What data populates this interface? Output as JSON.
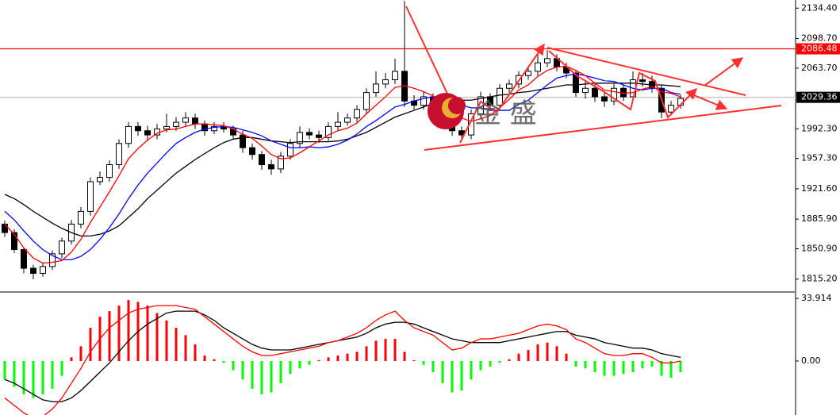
{
  "chart_data": [
    {
      "type": "candlestick",
      "watermark": "金 盛",
      "ylim": [
        1800,
        2144
      ],
      "yticks": [
        {
          "value": 2134.4,
          "label": "2134.40"
        },
        {
          "value": 2098.7,
          "label": "2098.70"
        },
        {
          "value": 2063.7,
          "label": "2063.70"
        },
        {
          "value": 1992.3,
          "label": "1992.30"
        },
        {
          "value": 1957.3,
          "label": "1957.30"
        },
        {
          "value": 1921.6,
          "label": "1921.60"
        },
        {
          "value": 1885.9,
          "label": "1885.90"
        },
        {
          "value": 1850.9,
          "label": "1850.90"
        },
        {
          "value": 1815.2,
          "label": "1815.20"
        }
      ],
      "hlines": [
        {
          "value": 2086.48,
          "label": "2086.48",
          "color": "#ff0000"
        },
        {
          "value": 2029.36,
          "label": "2029.36",
          "color": "#c0c0c0",
          "label_color": "#000000"
        }
      ],
      "up_color": "#ffffff",
      "down_color": "#000000",
      "candles": [
        [
          1880,
          1884,
          1865,
          1870
        ],
        [
          1870,
          1874,
          1846,
          1850
        ],
        [
          1850,
          1852,
          1822,
          1828
        ],
        [
          1828,
          1832,
          1815,
          1822
        ],
        [
          1822,
          1835,
          1818,
          1830
        ],
        [
          1830,
          1849,
          1826,
          1845
        ],
        [
          1845,
          1864,
          1840,
          1860
        ],
        [
          1860,
          1885,
          1856,
          1880
        ],
        [
          1880,
          1900,
          1875,
          1895
        ],
        [
          1895,
          1935,
          1890,
          1930
        ],
        [
          1930,
          1942,
          1926,
          1935
        ],
        [
          1935,
          1955,
          1930,
          1950
        ],
        [
          1950,
          1980,
          1945,
          1975
        ],
        [
          1975,
          2000,
          1970,
          1995
        ],
        [
          1995,
          2000,
          1984,
          1990
        ],
        [
          1990,
          1996,
          1978,
          1985
        ],
        [
          1985,
          1998,
          1980,
          1992
        ],
        [
          1992,
          2010,
          1988,
          1995
        ],
        [
          1995,
          2006,
          1990,
          2000
        ],
        [
          2000,
          2012,
          1995,
          2005
        ],
        [
          2005,
          2010,
          1992,
          1998
        ],
        [
          1998,
          2002,
          1984,
          1990
        ],
        [
          1990,
          2000,
          1986,
          1995
        ],
        [
          1995,
          2000,
          1988,
          1992
        ],
        [
          1992,
          1996,
          1980,
          1985
        ],
        [
          1985,
          1990,
          1964,
          1970
        ],
        [
          1970,
          1975,
          1956,
          1962
        ],
        [
          1962,
          1966,
          1944,
          1950
        ],
        [
          1950,
          1956,
          1938,
          1945
        ],
        [
          1945,
          1965,
          1940,
          1960
        ],
        [
          1960,
          1980,
          1956,
          1975
        ],
        [
          1975,
          1995,
          1970,
          1988
        ],
        [
          1988,
          1993,
          1980,
          1985
        ],
        [
          1985,
          1990,
          1976,
          1982
        ],
        [
          1982,
          2000,
          1978,
          1995
        ],
        [
          1995,
          2012,
          1990,
          2000
        ],
        [
          2000,
          2010,
          1996,
          2005
        ],
        [
          2005,
          2020,
          2000,
          2015
        ],
        [
          2015,
          2040,
          2010,
          2035
        ],
        [
          2035,
          2060,
          2030,
          2045
        ],
        [
          2045,
          2058,
          2040,
          2050
        ],
        [
          2050,
          2075,
          2045,
          2060
        ],
        [
          2060,
          2143,
          2018,
          2025
        ],
        [
          2025,
          2032,
          2014,
          2020
        ],
        [
          2020,
          2036,
          2015,
          2030
        ],
        [
          2030,
          2034,
          2010,
          2015
        ],
        [
          2015,
          2020,
          2000,
          2005
        ],
        [
          2005,
          2010,
          1984,
          1990
        ],
        [
          1990,
          1995,
          1978,
          1985
        ],
        [
          1985,
          2015,
          1980,
          2010
        ],
        [
          2010,
          2036,
          2005,
          2030
        ],
        [
          2030,
          2034,
          2014,
          2020
        ],
        [
          2020,
          2045,
          2015,
          2040
        ],
        [
          2040,
          2050,
          2035,
          2045
        ],
        [
          2045,
          2060,
          2040,
          2055
        ],
        [
          2055,
          2065,
          2050,
          2060
        ],
        [
          2060,
          2082,
          2055,
          2070
        ],
        [
          2070,
          2085,
          2065,
          2075
        ],
        [
          2075,
          2080,
          2060,
          2065
        ],
        [
          2065,
          2070,
          2052,
          2058
        ],
        [
          2058,
          2062,
          2030,
          2035
        ],
        [
          2035,
          2048,
          2028,
          2040
        ],
        [
          2040,
          2045,
          2024,
          2030
        ],
        [
          2030,
          2036,
          2018,
          2025
        ],
        [
          2025,
          2045,
          2020,
          2040
        ],
        [
          2040,
          2044,
          2025,
          2030
        ],
        [
          2030,
          2060,
          2026,
          2050
        ],
        [
          2050,
          2058,
          2042,
          2048
        ],
        [
          2048,
          2055,
          2035,
          2040
        ],
        [
          2040,
          2044,
          2005,
          2012
        ],
        [
          2012,
          2025,
          2008,
          2020
        ],
        [
          2020,
          2032,
          2016,
          2028
        ]
      ],
      "series": [
        {
          "color": "#000000",
          "values": [
            1915,
            1910,
            1903,
            1895,
            1888,
            1881,
            1875,
            1870,
            1866,
            1866,
            1868,
            1872,
            1878,
            1888,
            1898,
            1910,
            1920,
            1930,
            1940,
            1948,
            1956,
            1963,
            1970,
            1976,
            1980,
            1982,
            1982,
            1980,
            1978,
            1977,
            1976,
            1977,
            1977,
            1977,
            1977,
            1978,
            1980,
            1984,
            1988,
            1994,
            2000,
            2006,
            2010,
            2014,
            2018,
            2022,
            2024,
            2025,
            2026,
            2026,
            2028,
            2030,
            2032,
            2033,
            2035,
            2036,
            2038,
            2040,
            2042,
            2044,
            2044,
            2045,
            2046,
            2046,
            2046,
            2046,
            2046,
            2045,
            2044,
            2044,
            2043,
            2042
          ]
        },
        {
          "color": "#0000ff",
          "values": [
            1895,
            1885,
            1872,
            1860,
            1850,
            1843,
            1838,
            1838,
            1842,
            1850,
            1862,
            1876,
            1892,
            1910,
            1926,
            1940,
            1952,
            1964,
            1975,
            1982,
            1988,
            1992,
            1994,
            1995,
            1994,
            1991,
            1988,
            1984,
            1978,
            1974,
            1970,
            1970,
            1971,
            1970,
            1971,
            1974,
            1979,
            1986,
            1995,
            2002,
            2010,
            2018,
            2021,
            2025,
            2028,
            2030,
            2030,
            2026,
            2020,
            2017,
            2017,
            2014,
            2014,
            2014,
            2021,
            2026,
            2035,
            2044,
            2052,
            2055,
            2057,
            2055,
            2052,
            2049,
            2048,
            2044,
            2040,
            2038,
            2040,
            2040,
            2035,
            2033
          ]
        },
        {
          "color": "#ff0000",
          "values": [
            1880,
            1868,
            1852,
            1840,
            1834,
            1835,
            1837,
            1847,
            1862,
            1882,
            1900,
            1918,
            1937,
            1957,
            1969,
            1979,
            1987,
            1991,
            1992,
            1995,
            1998,
            1998,
            1997,
            1996,
            1992,
            1986,
            1981,
            1972,
            1962,
            1957,
            1958,
            1964,
            1971,
            1978,
            1985,
            1990,
            1993,
            1999,
            2010,
            2020,
            2030,
            2041,
            2043,
            2040,
            2036,
            2031,
            2019,
            2012,
            2005,
            2001,
            2004,
            2008,
            2017,
            2027,
            2038,
            2044,
            2054,
            2061,
            2065,
            2066,
            2061,
            2055,
            2046,
            2038,
            2036,
            2034,
            2035,
            2039,
            2042,
            2036,
            2034,
            2030
          ]
        }
      ]
    },
    {
      "type": "macd",
      "ylim": [
        -29.2,
        36.5
      ],
      "yticks": [
        33.914,
        {
          "value": 0,
          "label": "0.00"
        }
      ],
      "pos_color": "#ff0000",
      "neg_color": "#00ff00",
      "histogram": [
        -10,
        -14,
        -18,
        -20,
        -18,
        -15,
        -8,
        2,
        8,
        18,
        24,
        27,
        30,
        33,
        32,
        30,
        26,
        22,
        18,
        14,
        9,
        3,
        1,
        -1,
        -5,
        -10,
        -15,
        -18,
        -17,
        -12,
        -7,
        -4,
        -2,
        0.5,
        2,
        3,
        4,
        5,
        8,
        11,
        12,
        12,
        5,
        0.5,
        -2,
        -6,
        -12,
        -17,
        -16,
        -10,
        -5,
        -3,
        -1,
        1,
        4,
        6,
        9,
        10,
        8,
        4,
        -3,
        -4,
        -6,
        -8,
        -8,
        -7,
        -6,
        -4,
        -3,
        -8,
        -9,
        -6
      ],
      "series": [
        {
          "color": "#000000",
          "values": [
            -10,
            -12,
            -15,
            -18,
            -21,
            -22,
            -22,
            -20,
            -16,
            -11,
            -6,
            -1,
            5,
            11,
            16,
            20,
            23,
            26,
            27,
            27,
            27,
            25,
            22,
            18,
            15,
            12,
            9,
            7,
            6,
            6,
            6,
            7,
            8,
            9,
            10,
            11,
            12,
            13,
            15,
            18,
            20,
            21,
            21,
            20,
            18,
            16,
            14,
            12,
            11,
            10,
            10,
            10,
            10,
            11,
            12,
            13,
            14,
            15,
            16,
            16,
            14,
            13,
            12,
            10,
            9,
            8,
            7,
            7,
            6,
            4,
            3,
            2
          ]
        },
        {
          "color": "#ff0000",
          "values": [
            -20,
            -24,
            -28,
            -31,
            -30,
            -26,
            -20,
            -12,
            -4,
            5,
            12,
            18,
            22,
            26,
            28,
            29,
            30,
            30,
            30,
            29,
            28,
            24,
            20,
            16,
            12,
            8,
            5,
            3,
            3,
            4,
            5,
            6,
            7,
            8,
            10,
            11,
            13,
            15,
            18,
            22,
            25,
            27,
            22,
            18,
            16,
            14,
            10,
            6,
            7,
            10,
            12,
            12,
            13,
            14,
            15,
            17,
            19,
            20,
            19,
            17,
            12,
            10,
            7,
            4,
            3,
            3,
            4,
            4,
            2,
            -1,
            -1,
            0
          ]
        }
      ]
    }
  ]
}
